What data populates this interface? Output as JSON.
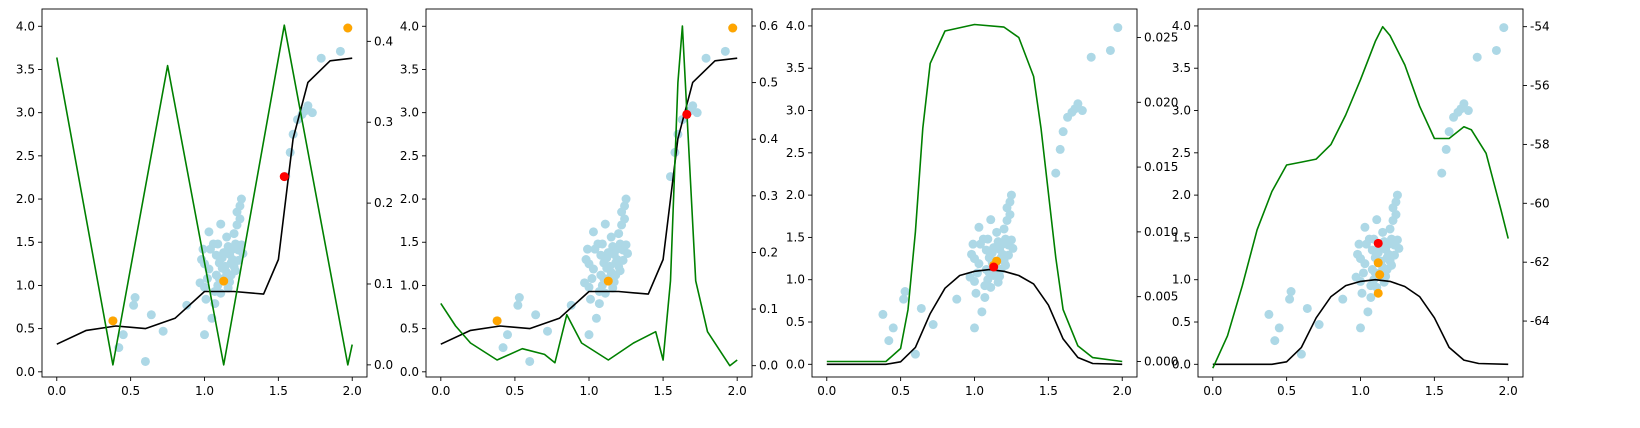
{
  "chart_data": [
    {
      "type": "scatter",
      "xlim": [
        -0.1,
        2.1
      ],
      "ylim": [
        -0.06,
        4.2
      ],
      "y2lim": [
        -0.015,
        0.44
      ],
      "xticks": [
        "0.0",
        "0.5",
        "1.0",
        "1.5",
        "2.0"
      ],
      "yticks": [
        "0.0",
        "0.5",
        "1.0",
        "1.5",
        "2.0",
        "2.5",
        "3.0",
        "3.5",
        "4.0"
      ],
      "y2ticks": [
        "0.0",
        "0.1",
        "0.2",
        "0.3",
        "0.4"
      ],
      "orange_points": [
        [
          0.38,
          0.59
        ],
        [
          1.13,
          1.05
        ],
        [
          1.97,
          3.98
        ]
      ],
      "red_points": [
        [
          1.54,
          2.26
        ]
      ],
      "mean_curve": [
        [
          0.0,
          0.32
        ],
        [
          0.2,
          0.48
        ],
        [
          0.4,
          0.53
        ],
        [
          0.6,
          0.5
        ],
        [
          0.8,
          0.62
        ],
        [
          1.0,
          0.93
        ],
        [
          1.2,
          0.93
        ],
        [
          1.4,
          0.9
        ],
        [
          1.5,
          1.3
        ],
        [
          1.6,
          2.7
        ],
        [
          1.7,
          3.35
        ],
        [
          1.85,
          3.6
        ],
        [
          2.0,
          3.63
        ]
      ],
      "acquisition_curve": [
        [
          0.0,
          0.38
        ],
        [
          0.38,
          0.0
        ],
        [
          0.75,
          0.37
        ],
        [
          1.13,
          0.0
        ],
        [
          1.54,
          0.42
        ],
        [
          1.97,
          0.0
        ],
        [
          2.0,
          0.025
        ]
      ]
    },
    {
      "type": "scatter",
      "xlim": [
        -0.1,
        2.1
      ],
      "ylim": [
        -0.06,
        4.2
      ],
      "y2lim": [
        -0.02,
        0.63
      ],
      "xticks": [
        "0.0",
        "0.5",
        "1.0",
        "1.5",
        "2.0"
      ],
      "yticks": [
        "0.0",
        "0.5",
        "1.0",
        "1.5",
        "2.0",
        "2.5",
        "3.0",
        "3.5",
        "4.0"
      ],
      "y2ticks": [
        "0.0",
        "0.1",
        "0.2",
        "0.3",
        "0.4",
        "0.5",
        "0.6"
      ],
      "orange_points": [
        [
          0.38,
          0.59
        ],
        [
          1.13,
          1.05
        ],
        [
          1.97,
          3.98
        ]
      ],
      "red_points": [
        [
          1.66,
          2.98
        ]
      ],
      "mean_curve": [
        [
          0.0,
          0.32
        ],
        [
          0.2,
          0.48
        ],
        [
          0.4,
          0.53
        ],
        [
          0.6,
          0.5
        ],
        [
          0.8,
          0.62
        ],
        [
          1.0,
          0.93
        ],
        [
          1.2,
          0.93
        ],
        [
          1.4,
          0.9
        ],
        [
          1.5,
          1.3
        ],
        [
          1.6,
          2.7
        ],
        [
          1.7,
          3.35
        ],
        [
          1.85,
          3.6
        ],
        [
          2.0,
          3.63
        ]
      ],
      "acquisition_curve": [
        [
          0.0,
          0.11
        ],
        [
          0.1,
          0.07
        ],
        [
          0.2,
          0.04
        ],
        [
          0.38,
          0.01
        ],
        [
          0.55,
          0.03
        ],
        [
          0.7,
          0.02
        ],
        [
          0.77,
          0.005
        ],
        [
          0.85,
          0.09
        ],
        [
          0.95,
          0.04
        ],
        [
          1.13,
          0.01
        ],
        [
          1.3,
          0.04
        ],
        [
          1.45,
          0.06
        ],
        [
          1.5,
          0.01
        ],
        [
          1.55,
          0.15
        ],
        [
          1.6,
          0.5
        ],
        [
          1.63,
          0.6
        ],
        [
          1.66,
          0.45
        ],
        [
          1.72,
          0.15
        ],
        [
          1.8,
          0.06
        ],
        [
          1.9,
          0.02
        ],
        [
          1.95,
          0.0
        ],
        [
          2.0,
          0.01
        ]
      ]
    },
    {
      "type": "scatter",
      "xlim": [
        -0.1,
        2.1
      ],
      "ylim": [
        -0.15,
        4.2
      ],
      "y2lim": [
        -0.0012,
        0.0272
      ],
      "xticks": [
        "0.0",
        "0.5",
        "1.0",
        "1.5",
        "2.0"
      ],
      "yticks": [
        "0.0",
        "0.5",
        "1.0",
        "1.5",
        "2.0",
        "2.5",
        "3.0",
        "3.5",
        "4.0"
      ],
      "y2ticks": [
        "0.000",
        "0.005",
        "0.010",
        "0.015",
        "0.020",
        "0.025"
      ],
      "orange_points": [
        [
          1.13,
          1.17
        ],
        [
          1.15,
          1.22
        ]
      ],
      "red_points": [
        [
          1.13,
          1.15
        ]
      ],
      "mean_curve": [
        [
          0.0,
          0.0
        ],
        [
          0.4,
          0.0
        ],
        [
          0.5,
          0.03
        ],
        [
          0.6,
          0.2
        ],
        [
          0.7,
          0.6
        ],
        [
          0.8,
          0.9
        ],
        [
          0.9,
          1.05
        ],
        [
          1.0,
          1.1
        ],
        [
          1.1,
          1.12
        ],
        [
          1.2,
          1.1
        ],
        [
          1.3,
          1.05
        ],
        [
          1.4,
          0.95
        ],
        [
          1.5,
          0.7
        ],
        [
          1.6,
          0.3
        ],
        [
          1.7,
          0.08
        ],
        [
          1.8,
          0.01
        ],
        [
          2.0,
          0.0
        ]
      ],
      "acquisition_curve": [
        [
          0.0,
          0.0
        ],
        [
          0.4,
          0.0
        ],
        [
          0.5,
          0.001
        ],
        [
          0.55,
          0.004
        ],
        [
          0.6,
          0.01
        ],
        [
          0.65,
          0.018
        ],
        [
          0.7,
          0.023
        ],
        [
          0.8,
          0.0255
        ],
        [
          1.0,
          0.026
        ],
        [
          1.2,
          0.0258
        ],
        [
          1.3,
          0.025
        ],
        [
          1.4,
          0.022
        ],
        [
          1.45,
          0.018
        ],
        [
          1.5,
          0.013
        ],
        [
          1.55,
          0.008
        ],
        [
          1.6,
          0.004
        ],
        [
          1.7,
          0.0012
        ],
        [
          1.8,
          0.0003
        ],
        [
          2.0,
          0.0
        ]
      ]
    },
    {
      "type": "scatter",
      "xlim": [
        -0.1,
        2.1
      ],
      "ylim": [
        -0.15,
        4.2
      ],
      "y2lim": [
        -65.9,
        -53.4
      ],
      "xticks": [
        "0.0",
        "0.5",
        "1.0",
        "1.5",
        "2.0"
      ],
      "yticks": [
        "0.0",
        "0.5",
        "1.0",
        "1.5",
        "2.0",
        "2.5",
        "3.0",
        "3.5",
        "4.0"
      ],
      "y2ticks": [
        "-54",
        "-56",
        "-58",
        "-60",
        "-62",
        "-64"
      ],
      "orange_points": [
        [
          1.12,
          1.2
        ],
        [
          1.13,
          1.06
        ],
        [
          1.12,
          0.84
        ]
      ],
      "red_points": [
        [
          1.12,
          1.43
        ]
      ],
      "mean_curve": [
        [
          0.0,
          0.0
        ],
        [
          0.4,
          0.0
        ],
        [
          0.5,
          0.03
        ],
        [
          0.6,
          0.2
        ],
        [
          0.7,
          0.55
        ],
        [
          0.8,
          0.8
        ],
        [
          0.9,
          0.93
        ],
        [
          1.0,
          0.98
        ],
        [
          1.1,
          1.0
        ],
        [
          1.2,
          0.98
        ],
        [
          1.3,
          0.92
        ],
        [
          1.4,
          0.8
        ],
        [
          1.5,
          0.55
        ],
        [
          1.6,
          0.2
        ],
        [
          1.7,
          0.05
        ],
        [
          1.8,
          0.01
        ],
        [
          2.0,
          0.0
        ]
      ],
      "acquisition_curve": [
        [
          0.0,
          -65.6
        ],
        [
          0.1,
          -64.5
        ],
        [
          0.2,
          -62.8
        ],
        [
          0.3,
          -60.9
        ],
        [
          0.4,
          -59.6
        ],
        [
          0.5,
          -58.7
        ],
        [
          0.6,
          -58.6
        ],
        [
          0.7,
          -58.5
        ],
        [
          0.8,
          -58.0
        ],
        [
          0.9,
          -57.0
        ],
        [
          1.0,
          -55.8
        ],
        [
          1.1,
          -54.5
        ],
        [
          1.15,
          -54.0
        ],
        [
          1.2,
          -54.3
        ],
        [
          1.3,
          -55.3
        ],
        [
          1.4,
          -56.7
        ],
        [
          1.5,
          -57.8
        ],
        [
          1.6,
          -57.8
        ],
        [
          1.7,
          -57.4
        ],
        [
          1.75,
          -57.5
        ],
        [
          1.85,
          -58.3
        ],
        [
          1.95,
          -60.2
        ],
        [
          2.0,
          -61.2
        ]
      ]
    }
  ],
  "observations": [
    [
      0.38,
      0.59
    ],
    [
      0.42,
      0.28
    ],
    [
      0.45,
      0.43
    ],
    [
      0.52,
      0.77
    ],
    [
      0.53,
      0.86
    ],
    [
      0.6,
      0.12
    ],
    [
      0.64,
      0.66
    ],
    [
      0.72,
      0.47
    ],
    [
      0.88,
      0.77
    ],
    [
      0.97,
      1.03
    ],
    [
      0.98,
      1.3
    ],
    [
      0.99,
      1.42
    ],
    [
      1.0,
      1.25
    ],
    [
      1.0,
      0.98
    ],
    [
      1.01,
      0.84
    ],
    [
      1.02,
      1.08
    ],
    [
      1.03,
      1.19
    ],
    [
      1.03,
      1.62
    ],
    [
      1.04,
      1.42
    ],
    [
      1.05,
      0.62
    ],
    [
      1.06,
      1.48
    ],
    [
      1.07,
      0.93
    ],
    [
      1.07,
      0.79
    ],
    [
      1.08,
      1.35
    ],
    [
      1.08,
      1.12
    ],
    [
      1.09,
      1.48
    ],
    [
      1.09,
      1.0
    ],
    [
      1.1,
      1.26
    ],
    [
      1.1,
      1.08
    ],
    [
      1.11,
      1.71
    ],
    [
      1.11,
      0.91
    ],
    [
      1.12,
      1.2
    ],
    [
      1.12,
      1.32
    ],
    [
      1.13,
      1.05
    ],
    [
      1.13,
      1.38
    ],
    [
      1.14,
      1.09
    ],
    [
      1.14,
      1.22
    ],
    [
      1.15,
      1.56
    ],
    [
      1.15,
      1.15
    ],
    [
      1.16,
      1.45
    ],
    [
      1.16,
      0.97
    ],
    [
      1.17,
      1.36
    ],
    [
      1.17,
      1.04
    ],
    [
      1.18,
      1.26
    ],
    [
      1.18,
      1.12
    ],
    [
      1.19,
      1.42
    ],
    [
      1.19,
      1.3
    ],
    [
      1.2,
      1.22
    ],
    [
      1.2,
      1.6
    ],
    [
      1.21,
      1.17
    ],
    [
      1.21,
      1.48
    ],
    [
      1.22,
      1.85
    ],
    [
      1.22,
      1.7
    ],
    [
      1.23,
      1.41
    ],
    [
      1.23,
      1.29
    ],
    [
      1.24,
      1.92
    ],
    [
      1.24,
      1.77
    ],
    [
      1.25,
      2.0
    ],
    [
      1.25,
      1.47
    ],
    [
      1.26,
      1.37
    ],
    [
      1.0,
      0.43
    ],
    [
      1.55,
      2.26
    ],
    [
      1.58,
      2.54
    ],
    [
      1.6,
      2.75
    ],
    [
      1.63,
      2.92
    ],
    [
      1.66,
      2.98
    ],
    [
      1.68,
      3.02
    ],
    [
      1.7,
      3.08
    ],
    [
      1.73,
      3.0
    ],
    [
      1.79,
      3.63
    ],
    [
      1.92,
      3.71
    ],
    [
      1.97,
      3.98
    ]
  ],
  "colors": {
    "observation": "#add8e6",
    "selected": "#ffa500",
    "next": "#ff0000",
    "mean": "#000000",
    "acquisition": "#008000"
  }
}
